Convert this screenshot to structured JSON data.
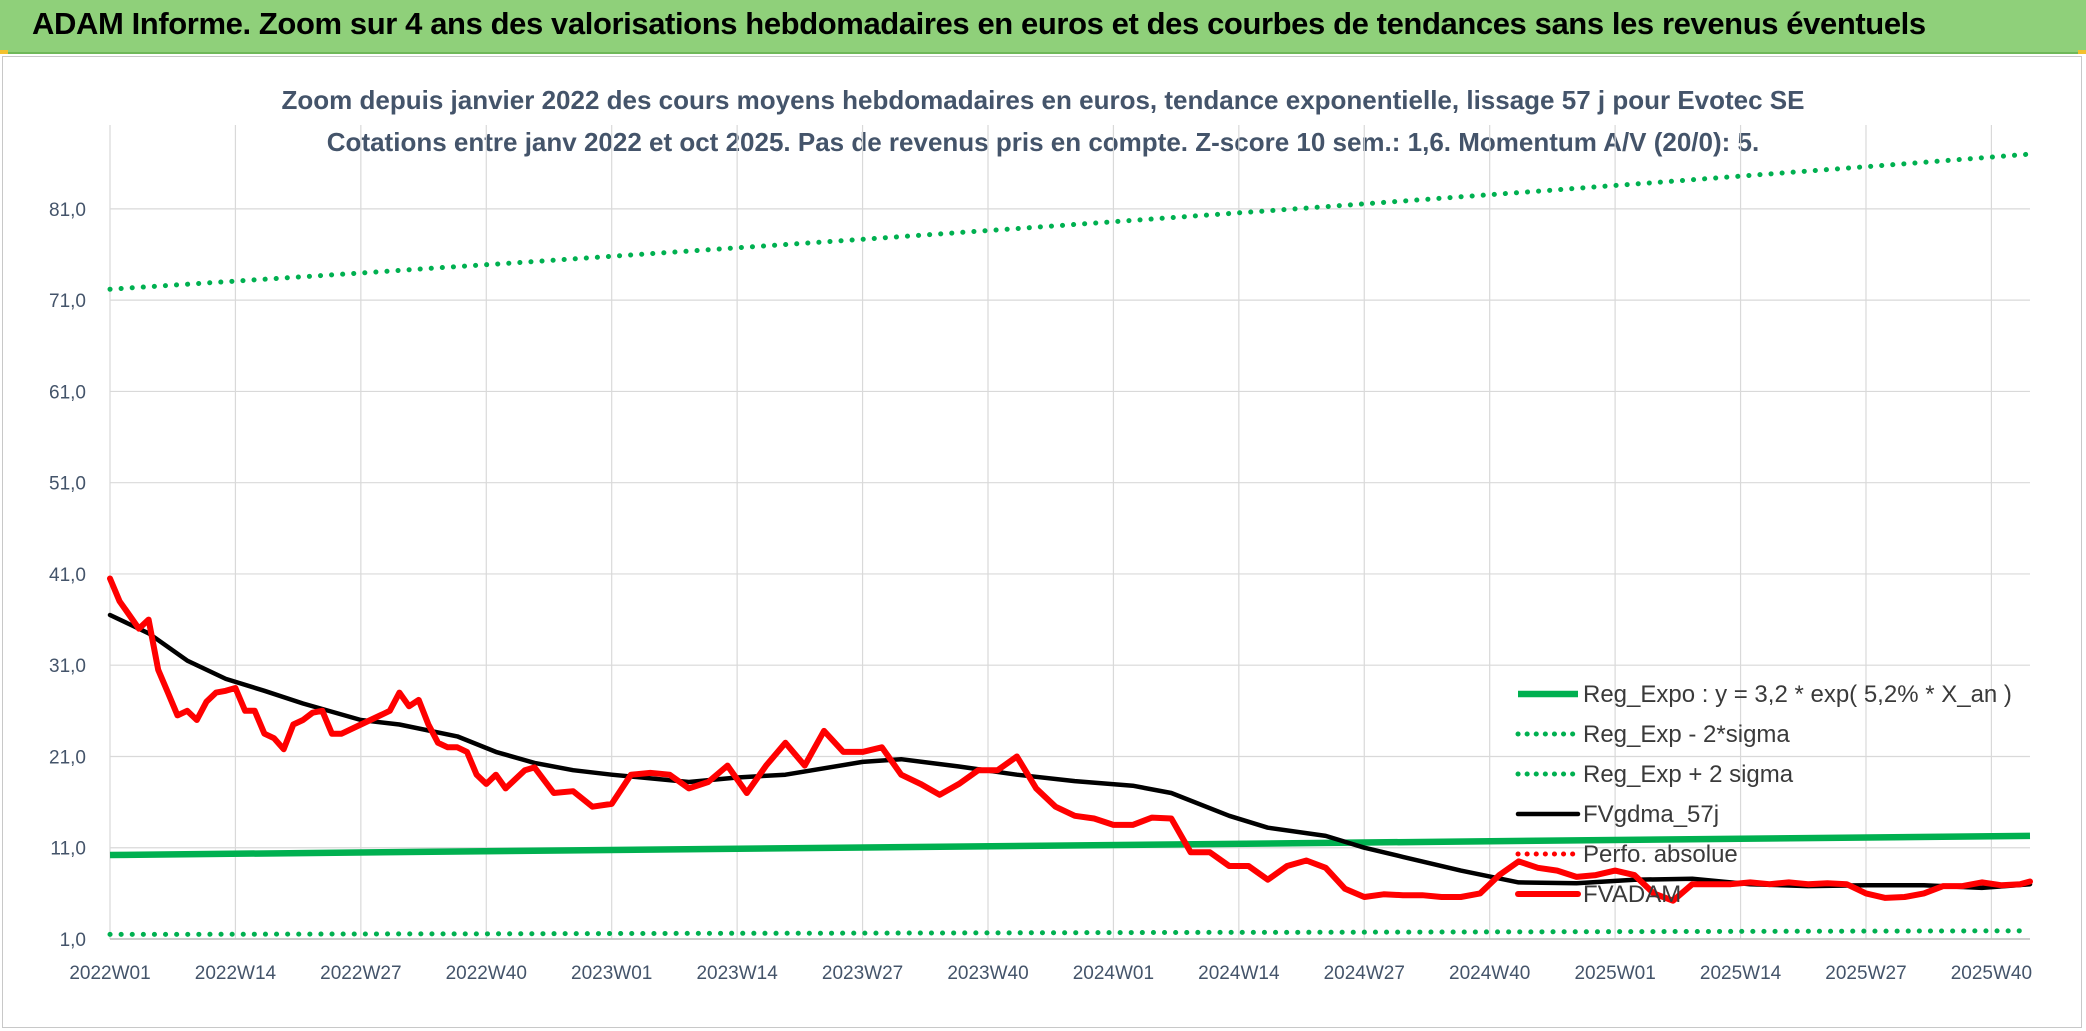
{
  "header": {
    "title": "ADAM Informe. Zoom sur 4 ans des valorisations hebdomadaires en euros et des courbes de tendances sans les revenus éventuels"
  },
  "chart_data": {
    "type": "line",
    "title": "Zoom depuis janvier 2022 des cours moyens hebdomadaires en euros, tendance exponentielle, lissage 57 j pour Evotec SE",
    "subtitle": "Cotations entre janv 2022 et oct 2025. Pas de revenus pris en compte. Z-score 10 sem.: 1,6. Momentum A/V (20/0): 5.",
    "xlabel": "",
    "ylabel": "",
    "x_ticks": [
      "2022W01",
      "2022W14",
      "2022W27",
      "2022W40",
      "2023W01",
      "2023W14",
      "2023W27",
      "2023W40",
      "2024W01",
      "2024W14",
      "2024W27",
      "2024W40",
      "2025W01",
      "2025W14",
      "2025W27",
      "2025W40"
    ],
    "y_ticks": [
      "1,0",
      "11,0",
      "21,0",
      "31,0",
      "41,0",
      "51,0",
      "61,0",
      "71,0",
      "81,0"
    ],
    "ylim": [
      1,
      88
    ],
    "grid": true,
    "legend_position": "bottom-right",
    "x_unit": "weeks from 2022W01",
    "xlim": [
      0,
      199
    ],
    "series": [
      {
        "name": "Reg_Expo : y = 3,2 * exp( 5,2% *  X_an )",
        "color": "#00b050",
        "style": "solid",
        "x": [
          0,
          199
        ],
        "y": [
          10.2,
          12.3
        ]
      },
      {
        "name": "Reg_Exp - 2*sigma",
        "color": "#00b050",
        "style": "dotted",
        "x": [
          0,
          199
        ],
        "y": [
          1.5,
          1.9
        ]
      },
      {
        "name": "Reg_Exp + 2 sigma",
        "color": "#00b050",
        "style": "dotted",
        "x": [
          0,
          199
        ],
        "y": [
          72.2,
          87.0
        ]
      },
      {
        "name": "FVgdma_57j",
        "color": "#000000",
        "style": "solid",
        "x": [
          0,
          4,
          8,
          12,
          16,
          20,
          26,
          30,
          36,
          40,
          44,
          48,
          52,
          60,
          65,
          70,
          78,
          82,
          88,
          94,
          100,
          106,
          110,
          116,
          120,
          126,
          130,
          134,
          140,
          146,
          152,
          158,
          164,
          170,
          176,
          182,
          188,
          194,
          199
        ],
        "y": [
          36.5,
          34.5,
          31.5,
          29.5,
          28.2,
          26.8,
          25.0,
          24.5,
          23.2,
          21.5,
          20.3,
          19.5,
          19.0,
          18.2,
          18.7,
          19.0,
          20.4,
          20.7,
          19.9,
          19.0,
          18.3,
          17.8,
          17.0,
          14.5,
          13.2,
          12.3,
          11.0,
          10.0,
          8.5,
          7.2,
          7.1,
          7.5,
          7.6,
          7.0,
          6.8,
          6.9,
          6.9,
          6.6,
          7.0
        ]
      },
      {
        "name": "Perfo. absolue",
        "color": "#ff0000",
        "style": "dotted",
        "x": [],
        "y": []
      },
      {
        "name": "FVADAM",
        "color": "#ff0000",
        "style": "solid",
        "x": [
          0,
          1,
          2,
          3,
          4,
          5,
          6,
          7,
          8,
          9,
          10,
          11,
          12,
          13,
          14,
          15,
          16,
          17,
          18,
          19,
          20,
          21,
          22,
          23,
          24,
          26,
          28,
          29,
          30,
          31,
          32,
          33,
          34,
          35,
          36,
          37,
          38,
          39,
          40,
          41,
          42,
          43,
          44,
          46,
          48,
          50,
          52,
          54,
          56,
          58,
          60,
          62,
          64,
          66,
          68,
          70,
          72,
          74,
          76,
          78,
          80,
          82,
          84,
          86,
          88,
          90,
          92,
          94,
          96,
          98,
          100,
          102,
          104,
          106,
          108,
          110,
          112,
          114,
          116,
          118,
          120,
          122,
          124,
          126,
          128,
          130,
          132,
          134,
          136,
          138,
          140,
          142,
          144,
          146,
          148,
          150,
          152,
          154,
          156,
          158,
          160,
          162,
          164,
          166,
          168,
          170,
          172,
          174,
          176,
          178,
          180,
          182,
          184,
          186,
          188,
          190,
          192,
          194,
          196,
          198,
          199
        ],
        "y": [
          40.5,
          38.0,
          36.5,
          35.0,
          36.0,
          30.5,
          28.0,
          25.5,
          26.0,
          25.0,
          27.0,
          28.0,
          28.2,
          28.5,
          26.0,
          26.0,
          23.5,
          23.0,
          21.8,
          24.5,
          25.0,
          25.8,
          26.0,
          23.5,
          23.5,
          24.5,
          25.5,
          26.0,
          28.0,
          26.5,
          27.2,
          24.5,
          22.5,
          22.0,
          22.0,
          21.5,
          19.0,
          18.0,
          19.0,
          17.5,
          18.5,
          19.5,
          19.8,
          17.0,
          17.2,
          15.5,
          15.8,
          19.0,
          19.2,
          19.0,
          17.5,
          18.2,
          20.0,
          17.0,
          20.0,
          22.5,
          20.0,
          23.8,
          21.5,
          21.5,
          22.0,
          19.0,
          18.0,
          16.8,
          18.0,
          19.5,
          19.5,
          21.0,
          17.5,
          15.5,
          14.5,
          14.2,
          13.5,
          13.5,
          14.3,
          14.2,
          10.5,
          10.5,
          9.0,
          9.0,
          7.5,
          9.0,
          9.6,
          8.8,
          6.5,
          5.6,
          5.9,
          5.8,
          5.8,
          5.6,
          5.6,
          6.0,
          8.0,
          9.5,
          8.8,
          8.5,
          7.8,
          8.0,
          8.5,
          8.0,
          6.0,
          5.2,
          7.0,
          7.0,
          7.0,
          7.2,
          7.0,
          7.2,
          7.0,
          7.1,
          7.0,
          6.0,
          5.5,
          5.6,
          6.0,
          6.8,
          6.8,
          7.2,
          6.9,
          7.0,
          7.3
        ]
      }
    ]
  }
}
